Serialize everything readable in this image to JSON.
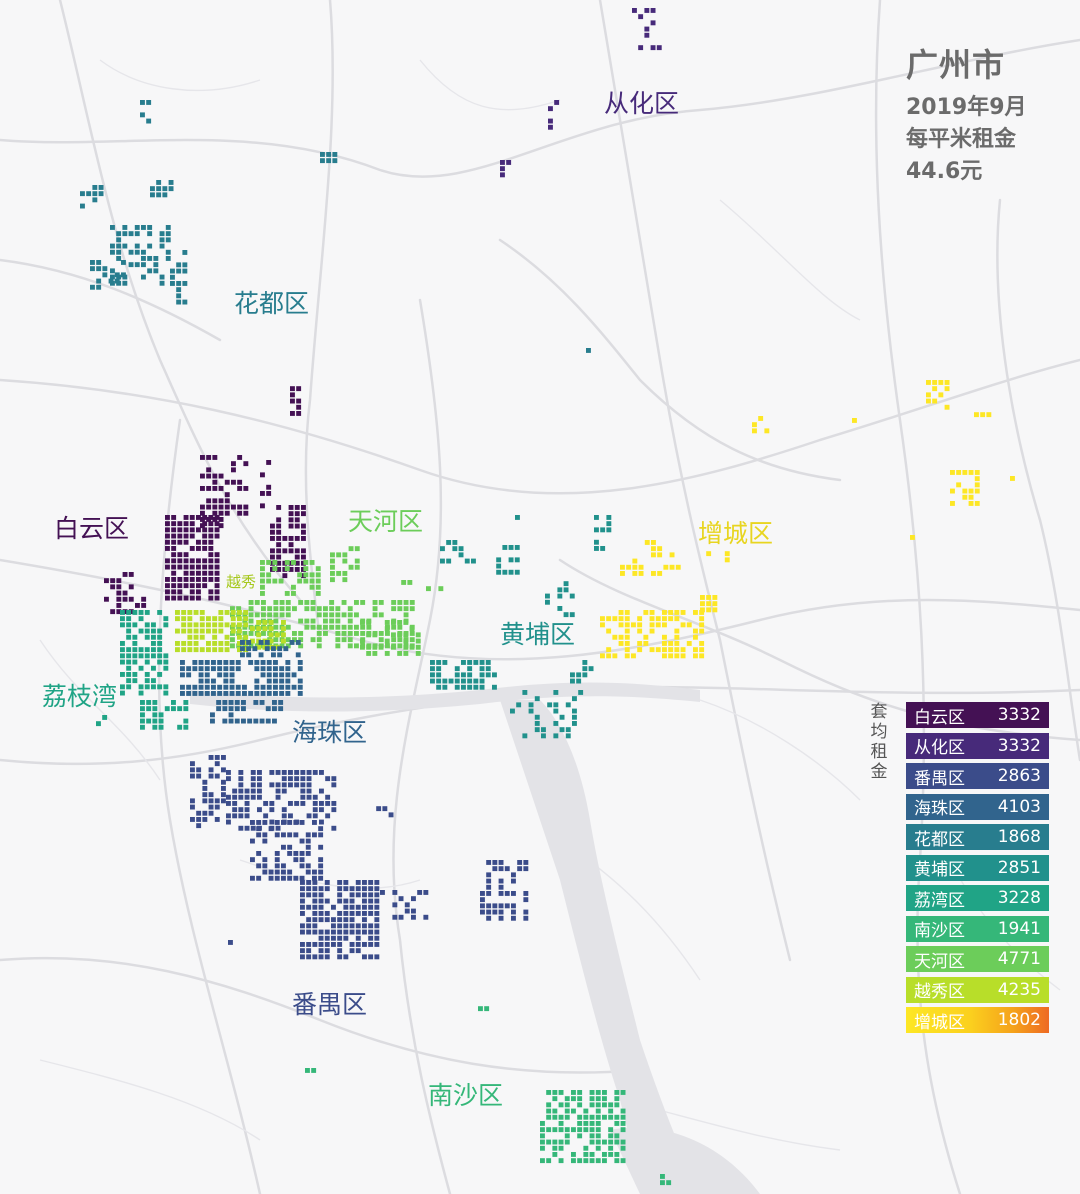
{
  "title": {
    "city": "广州市",
    "date": "2019年9月",
    "metric": "每平米租金",
    "value": "44.6元"
  },
  "legend_side_label": "套均租金",
  "districts": [
    {
      "id": "baiyun",
      "name": "白云区",
      "color": "#441154",
      "rent": "3332"
    },
    {
      "id": "conghua",
      "name": "从化区",
      "color": "#472a7a",
      "rent": "3332"
    },
    {
      "id": "panyu",
      "name": "番禺区",
      "color": "#3b4c8a",
      "rent": "2863"
    },
    {
      "id": "haizhu",
      "name": "海珠区",
      "color": "#31648d",
      "rent": "4103"
    },
    {
      "id": "huadu",
      "name": "花都区",
      "color": "#287d8e",
      "rent": "1868"
    },
    {
      "id": "huangpu",
      "name": "黄埔区",
      "color": "#21918c",
      "rent": "2851"
    },
    {
      "id": "liwan",
      "name": "荔湾区",
      "color": "#20a486",
      "rent": "3228"
    },
    {
      "id": "nansha",
      "name": "南沙区",
      "color": "#35b779",
      "rent": "1941"
    },
    {
      "id": "tianhe",
      "name": "天河区",
      "color": "#6ccd5a",
      "rent": "4771"
    },
    {
      "id": "yuexiu",
      "name": "越秀区",
      "color": "#b8de29",
      "rent": "4235"
    },
    {
      "id": "zengcheng",
      "name": "增城区",
      "color": "#fde725",
      "rent": "1802"
    }
  ],
  "map_labels": {
    "conghua": "从化区",
    "huadu": "花都区",
    "baiyun": "白云区",
    "tianhe": "天河区",
    "yuexiu": "越秀",
    "zengcheng": "增城区",
    "huangpu": "黄埔区",
    "liwan": "荔枝湾",
    "haizhu": "海珠区",
    "panyu": "番禺区",
    "nansha": "南沙区"
  }
}
